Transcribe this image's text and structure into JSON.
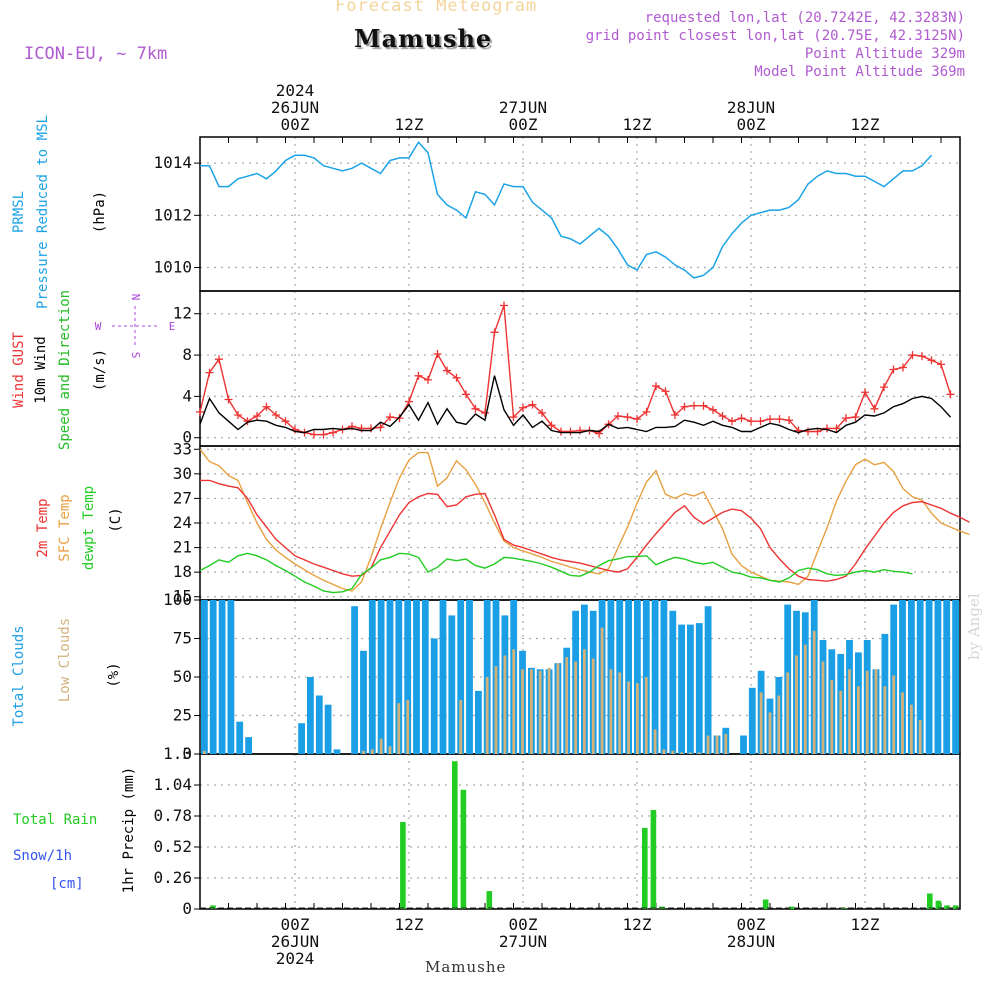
{
  "header": {
    "supertitle": "Forecast Meteogram",
    "location": "Mamushe",
    "model": "ICON-EU, ~ 7km",
    "requested": "requested lon,lat (20.7242E, 42.3283N)",
    "gridpoint": "grid point closest lon,lat (20.75E, 42.3125N)",
    "point_alt": "Point Altitude 329m",
    "model_alt": "Model Point Altitude 369m"
  },
  "footer": {
    "location": "Mamushe",
    "credit": "by Angel"
  },
  "colors": {
    "pressure": "#1ba3e6",
    "gust": "#ee3333",
    "wind": "#000000",
    "dir": "#22bb22",
    "temp": "#ee3333",
    "sfc": "#e8a040",
    "dewpt": "#22cc22",
    "total_cloud": "#1a9fe6",
    "low_cloud": "#d2b27a",
    "rain": "#22cc22",
    "snow": "#3355ee",
    "compass": "#aa44dd"
  },
  "chart_data": [
    {
      "type": "time_axis",
      "start_hour_offset": -10,
      "step_hours": 1,
      "top_labels": [
        {
          "hour": 0,
          "lines": [
            "2024",
            "26JUN",
            "00Z"
          ]
        },
        {
          "hour": 12,
          "lines": [
            "12Z"
          ]
        },
        {
          "hour": 24,
          "lines": [
            "27JUN",
            "00Z"
          ]
        },
        {
          "hour": 36,
          "lines": [
            "12Z"
          ]
        },
        {
          "hour": 48,
          "lines": [
            "28JUN",
            "00Z"
          ]
        },
        {
          "hour": 60,
          "lines": [
            "12Z"
          ]
        }
      ],
      "bottom_labels": [
        {
          "hour": 0,
          "lines": [
            "00Z",
            "26JUN",
            "2024"
          ]
        },
        {
          "hour": 12,
          "lines": [
            "12Z"
          ]
        },
        {
          "hour": 24,
          "lines": [
            "00Z",
            "27JUN"
          ]
        },
        {
          "hour": 36,
          "lines": [
            "12Z"
          ]
        },
        {
          "hour": 48,
          "lines": [
            "00Z",
            "28JUN"
          ]
        },
        {
          "hour": 60,
          "lines": [
            "12Z"
          ]
        }
      ]
    },
    {
      "type": "line",
      "id": "pressure",
      "ylabels": [
        "PRMSL",
        "Pressure Reduced to MSL",
        "(hPa)"
      ],
      "yticks": [
        1010,
        1012,
        1014
      ],
      "ylim": [
        1009.1,
        1015.0
      ],
      "series": [
        {
          "name": "PRMSL",
          "values": [
            1013.9,
            1013.9,
            1013.1,
            1013.1,
            1013.4,
            1013.5,
            1013.6,
            1013.4,
            1013.7,
            1014.1,
            1014.3,
            1014.3,
            1014.2,
            1013.9,
            1013.8,
            1013.7,
            1013.8,
            1014.0,
            1013.8,
            1013.6,
            1014.1,
            1014.2,
            1014.2,
            1014.8,
            1014.4,
            1012.8,
            1012.4,
            1012.2,
            1011.9,
            1012.9,
            1012.8,
            1012.4,
            1013.2,
            1013.1,
            1013.1,
            1012.5,
            1012.2,
            1011.9,
            1011.2,
            1011.1,
            1010.9,
            1011.2,
            1011.5,
            1011.2,
            1010.7,
            1010.1,
            1009.9,
            1010.5,
            1010.6,
            1010.4,
            1010.1,
            1009.9,
            1009.6,
            1009.7,
            1010.0,
            1010.8,
            1011.3,
            1011.7,
            1012.0,
            1012.1,
            1012.2,
            1012.2,
            1012.3,
            1012.6,
            1013.2,
            1013.5,
            1013.7,
            1013.6,
            1013.6,
            1013.5,
            1013.5,
            1013.3,
            1013.1,
            1013.4,
            1013.7,
            1013.7,
            1013.9,
            1014.3
          ]
        }
      ]
    },
    {
      "type": "line",
      "id": "wind",
      "ylabels": [
        "Wind GUST",
        "10m Wind",
        "Speed and Direction",
        "(m/s)"
      ],
      "yticks": [
        0,
        4,
        8,
        12
      ],
      "ylim": [
        -0.8,
        14.2
      ],
      "compass": {
        "n": "N",
        "s": "S",
        "w": "W",
        "e": "E"
      },
      "series": [
        {
          "name": "Wind GUST",
          "values": [
            2.5,
            6.3,
            7.6,
            3.7,
            2.2,
            1.6,
            2.1,
            3.0,
            2.2,
            1.6,
            0.8,
            0.5,
            0.3,
            0.3,
            0.5,
            0.8,
            1.1,
            0.9,
            0.9,
            1.0,
            2.0,
            1.9,
            3.5,
            6.0,
            5.6,
            8.1,
            6.5,
            5.8,
            4.2,
            2.8,
            2.4,
            10.2,
            12.8,
            2.0,
            2.9,
            3.2,
            2.4,
            1.2,
            0.6,
            0.6,
            0.7,
            0.7,
            0.4,
            1.3,
            2.1,
            2.0,
            1.8,
            2.5,
            5.0,
            4.5,
            2.2,
            3.0,
            3.1,
            3.1,
            2.7,
            2.1,
            1.6,
            1.9,
            1.6,
            1.6,
            1.8,
            1.8,
            1.7,
            0.7,
            0.6,
            0.6,
            0.9,
            0.9,
            1.9,
            2.0,
            4.4,
            2.8,
            4.9,
            6.6,
            6.8,
            8.0,
            7.9,
            7.5,
            7.1,
            4.2
          ]
        },
        {
          "name": "10m Wind",
          "values": [
            1.3,
            3.8,
            2.4,
            1.6,
            0.8,
            1.5,
            1.7,
            1.6,
            1.2,
            1.0,
            0.6,
            0.5,
            0.8,
            0.8,
            0.9,
            0.8,
            0.9,
            0.7,
            0.7,
            1.5,
            1.1,
            2.0,
            3.2,
            1.7,
            3.4,
            1.3,
            2.8,
            1.5,
            1.3,
            2.3,
            1.7,
            6.0,
            2.7,
            1.2,
            2.2,
            1.0,
            1.6,
            0.7,
            0.5,
            0.5,
            0.5,
            0.7,
            0.6,
            1.3,
            0.9,
            1.0,
            0.8,
            0.6,
            1.0,
            1.0,
            1.1,
            1.7,
            1.5,
            1.2,
            1.6,
            1.2,
            1.0,
            0.6,
            0.6,
            1.0,
            1.4,
            1.2,
            0.8,
            0.5,
            0.8,
            0.9,
            0.8,
            0.5,
            1.2,
            1.5,
            2.2,
            2.1,
            2.4,
            3.0,
            3.3,
            3.8,
            4.0,
            3.8,
            3.0,
            2.0
          ]
        }
      ]
    },
    {
      "type": "line",
      "id": "temperature",
      "ylabels": [
        "2m Temp",
        "SFC Temp",
        "dewpt Temp",
        "(C)"
      ],
      "yticks": [
        15,
        18,
        21,
        24,
        27,
        30,
        33
      ],
      "ylim": [
        14.6,
        33.4
      ],
      "series": [
        {
          "name": "2m Temp",
          "values": [
            29.2,
            29.2,
            28.8,
            28.5,
            28.3,
            27.0,
            25.0,
            23.5,
            22.0,
            21.0,
            20.0,
            19.5,
            19.0,
            18.6,
            18.2,
            17.8,
            17.5,
            17.6,
            18.5,
            21.0,
            23.0,
            25.0,
            26.5,
            27.2,
            27.6,
            27.5,
            26.0,
            26.2,
            27.2,
            27.5,
            27.6,
            25.0,
            22.0,
            21.3,
            21.0,
            20.6,
            20.2,
            19.8,
            19.5,
            19.3,
            19.1,
            18.8,
            18.5,
            18.2,
            18.0,
            18.4,
            19.8,
            21.3,
            22.7,
            24.0,
            25.3,
            26.1,
            24.7,
            23.9,
            24.6,
            25.3,
            25.7,
            25.5,
            24.6,
            23.3,
            21.0,
            19.6,
            18.4,
            17.5,
            17.1,
            17.0,
            16.9,
            17.1,
            17.5,
            19.0,
            20.8,
            22.4,
            24.0,
            25.3,
            26.1,
            26.5,
            26.6,
            26.2,
            25.8,
            25.2,
            24.7,
            24.1
          ]
        },
        {
          "name": "SFC Temp",
          "values": [
            33.0,
            31.5,
            31.0,
            29.8,
            29.2,
            26.5,
            24.0,
            22.0,
            20.7,
            19.8,
            19.0,
            18.3,
            17.6,
            17.0,
            16.5,
            16.0,
            15.7,
            16.8,
            19.8,
            23.3,
            26.5,
            29.5,
            31.7,
            32.6,
            32.6,
            28.5,
            29.5,
            31.6,
            30.5,
            28.7,
            26.5,
            24.0,
            21.8,
            21.0,
            20.6,
            20.2,
            19.8,
            19.3,
            19.0,
            18.6,
            18.3,
            18.0,
            17.8,
            18.4,
            21.0,
            23.5,
            26.4,
            29.0,
            30.4,
            27.5,
            27.0,
            27.6,
            27.3,
            27.8,
            25.6,
            23.3,
            20.2,
            18.8,
            18.0,
            17.5,
            17.0,
            16.9,
            16.8,
            16.5,
            17.5,
            20.5,
            23.4,
            26.7,
            29.1,
            31.1,
            31.8,
            31.1,
            31.4,
            30.3,
            28.2,
            27.2,
            26.8,
            25.2,
            24.0,
            23.5,
            23.0,
            22.6
          ]
        },
        {
          "name": "dewpt Temp",
          "values": [
            18.2,
            18.8,
            19.5,
            19.2,
            20.0,
            20.3,
            20.0,
            19.5,
            18.8,
            18.2,
            17.5,
            16.8,
            16.3,
            15.7,
            15.5,
            15.6,
            16.0,
            17.7,
            18.5,
            19.5,
            19.8,
            20.3,
            20.2,
            19.8,
            18.0,
            18.6,
            19.6,
            19.4,
            19.6,
            18.8,
            18.5,
            19.0,
            19.8,
            19.7,
            19.5,
            19.3,
            19.0,
            18.6,
            18.1,
            17.6,
            17.5,
            18.0,
            18.8,
            19.4,
            19.6,
            19.9,
            19.9,
            20.0,
            18.9,
            19.4,
            19.8,
            19.6,
            19.2,
            19.0,
            19.2,
            18.6,
            18.0,
            17.8,
            17.4,
            17.3,
            17.0,
            16.8,
            17.3,
            18.2,
            18.5,
            18.3,
            17.8,
            17.6,
            17.7,
            18.0,
            18.2,
            18.0,
            18.3,
            18.1,
            18.0,
            17.8
          ]
        }
      ]
    },
    {
      "type": "bar",
      "id": "clouds",
      "ylabels": [
        "Total Clouds",
        "Low Clouds",
        "(%)"
      ],
      "yticks": [
        0,
        25,
        50,
        75,
        100
      ],
      "ylim": [
        0,
        100
      ],
      "series": [
        {
          "name": "Total Clouds",
          "values": [
            100,
            100,
            100,
            100,
            21,
            11,
            0,
            0,
            0,
            0,
            0,
            20,
            50,
            38,
            32,
            3,
            0,
            96,
            67,
            100,
            100,
            100,
            100,
            100,
            100,
            100,
            75,
            100,
            90,
            100,
            100,
            41,
            100,
            100,
            90,
            100,
            67,
            56,
            55,
            55,
            59,
            69,
            93,
            97,
            93,
            100,
            100,
            100,
            100,
            100,
            100,
            100,
            100,
            93,
            84,
            84,
            85,
            96,
            12,
            17,
            0,
            12,
            43,
            54,
            36,
            50,
            97,
            93,
            92,
            100,
            74,
            68,
            65,
            74,
            66,
            74,
            55,
            78,
            97,
            100,
            100,
            100,
            100,
            100,
            100,
            100
          ]
        },
        {
          "name": "Low Clouds",
          "values": [
            2,
            0,
            0,
            0,
            0,
            0,
            0,
            0,
            0,
            0,
            0,
            0,
            0,
            0,
            0,
            0,
            0,
            0,
            2,
            3,
            10,
            5,
            33,
            35,
            0,
            0,
            0,
            0,
            0,
            35,
            0,
            0,
            50,
            57,
            64,
            68,
            55,
            55,
            54,
            56,
            59,
            63,
            60,
            68,
            62,
            82,
            55,
            53,
            47,
            46,
            50,
            16,
            3,
            2,
            1,
            1,
            1,
            12,
            12,
            13,
            0,
            0,
            0,
            40,
            27,
            38,
            53,
            64,
            71,
            80,
            60,
            48,
            41,
            55,
            44,
            54,
            55,
            44,
            51,
            40,
            32,
            22,
            0,
            0,
            0,
            0
          ]
        }
      ]
    },
    {
      "type": "bar",
      "id": "precip",
      "ylabels": [
        "Total  Rain",
        "Snow/1h",
        "[cm]",
        "1hr Precip (mm)"
      ],
      "yticks": [
        0,
        0.26,
        0.52,
        0.78,
        1.04,
        1.3
      ],
      "ylim": [
        0,
        1.3
      ],
      "series": [
        {
          "name": "Total Rain",
          "values": [
            0,
            0.03,
            0,
            0,
            0,
            0,
            0,
            0,
            0,
            0,
            0,
            0,
            0,
            0,
            0,
            0,
            0,
            0,
            0,
            0,
            0,
            0,
            0,
            0.73,
            0,
            0,
            0,
            0,
            0,
            1.24,
            1.0,
            0,
            0,
            0.15,
            0,
            0,
            0,
            0,
            0,
            0,
            0,
            0,
            0,
            0,
            0,
            0,
            0,
            0,
            0,
            0,
            0,
            0.68,
            0.83,
            0.02,
            0,
            0,
            0,
            0,
            0,
            0,
            0,
            0,
            0,
            0,
            0,
            0.08,
            0,
            0,
            0.02,
            0,
            0,
            0,
            0,
            0,
            0.01,
            0,
            0,
            0,
            0,
            0,
            0,
            0,
            0,
            0,
            0.13,
            0.07,
            0.03,
            0.03
          ]
        },
        {
          "name": "Snow/1h",
          "values": [
            0,
            0,
            0,
            0,
            0,
            0,
            0,
            0,
            0,
            0,
            0,
            0,
            0,
            0,
            0,
            0,
            0,
            0,
            0,
            0,
            0,
            0,
            0,
            0,
            0,
            0,
            0,
            0,
            0,
            0,
            0,
            0,
            0,
            0,
            0,
            0,
            0,
            0,
            0,
            0,
            0,
            0,
            0,
            0,
            0,
            0,
            0,
            0,
            0,
            0,
            0,
            0,
            0,
            0,
            0,
            0,
            0,
            0,
            0,
            0,
            0,
            0,
            0,
            0,
            0,
            0,
            0,
            0,
            0,
            0,
            0,
            0,
            0,
            0,
            0,
            0,
            0,
            0,
            0,
            0,
            0,
            0,
            0,
            0,
            0,
            0,
            0,
            0
          ]
        }
      ]
    }
  ]
}
